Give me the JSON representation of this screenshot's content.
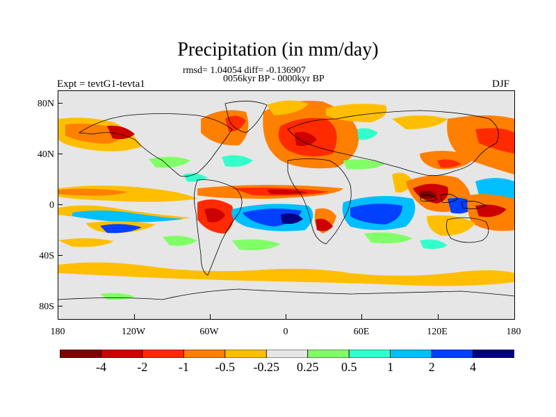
{
  "title": "Precipitation (in mm/day)",
  "subtitle_stats": "rmsd= 1.04054  diff= -0.136907",
  "subtitle_period": "0056kyr BP - 0000kyr BP",
  "experiment_label": "Expt = tevtG1-tevta1",
  "season_label": "DJF",
  "map": {
    "projection": "cylindrical-equidistant",
    "lon_range": [
      -180,
      180
    ],
    "lat_range": [
      -90,
      90
    ],
    "x_ticks": [
      "180",
      "120W",
      "60W",
      "0",
      "60E",
      "120E",
      "180"
    ],
    "y_ticks": [
      "80N",
      "40N",
      "0",
      "40S",
      "80S"
    ],
    "land_color": "#e6e6e6"
  },
  "colorbar": {
    "labels": [
      "-4",
      "-2",
      "-1",
      "-0.5",
      "-0.25",
      "0.25",
      "0.5",
      "1",
      "2",
      "4"
    ],
    "colors": [
      "#800000",
      "#cc0000",
      "#ff2a00",
      "#ff7f00",
      "#ffbf00",
      "#e6e6e6",
      "#80ff66",
      "#33ffcc",
      "#00bfff",
      "#0040ff",
      "#000080"
    ]
  },
  "icons": {
    "map_outline": "coastline-icon"
  }
}
